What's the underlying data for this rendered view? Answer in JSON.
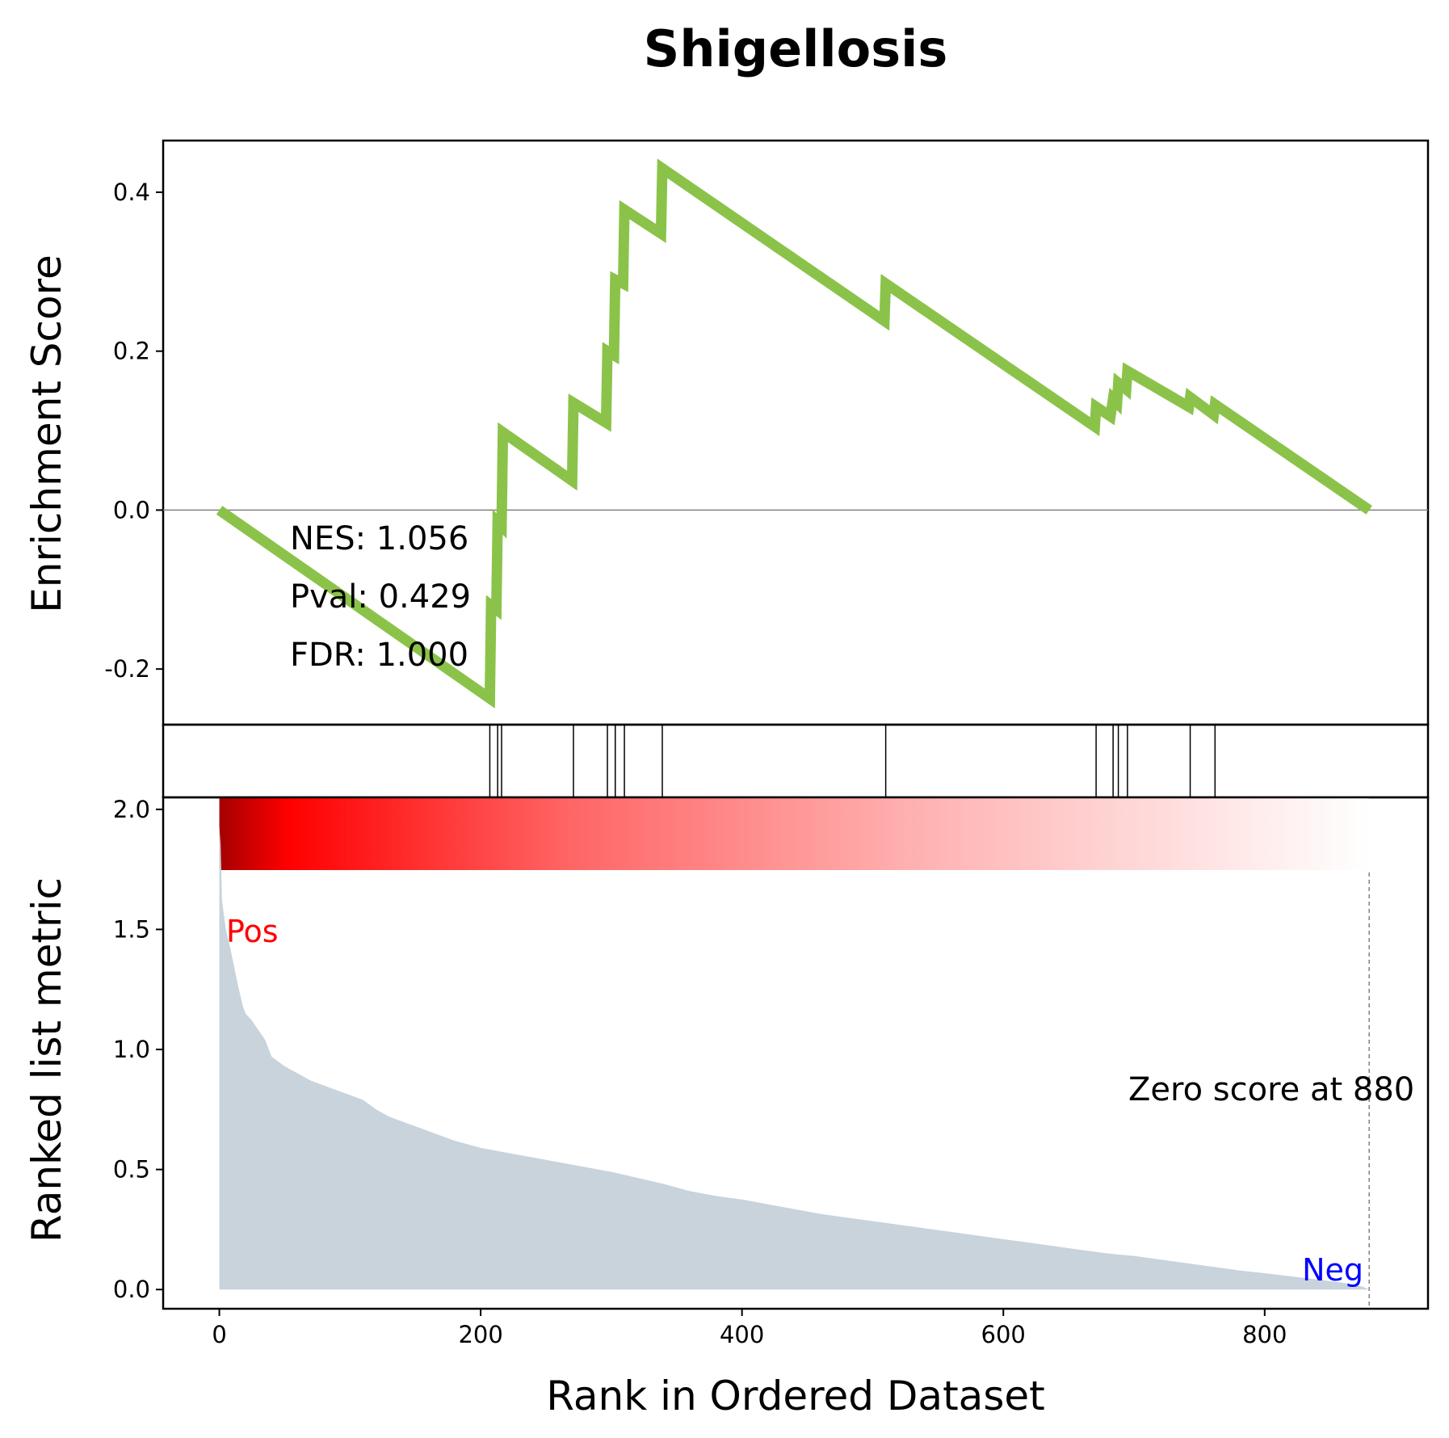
{
  "chart_data": {
    "type": "line",
    "title": "Shigellosis",
    "xlabel": "Rank in Ordered Dataset",
    "es_panel": {
      "ylabel": "Enrichment Score",
      "yticks": [
        -0.2,
        0.0,
        0.2,
        0.4
      ],
      "ytick_labels": [
        "-0.2",
        "0.0",
        "0.2",
        "0.4"
      ],
      "ylim": [
        -0.27,
        0.465
      ],
      "line_color": "#8bc34a",
      "x": [
        0,
        207,
        208,
        212,
        213,
        216,
        217,
        270,
        271,
        296,
        297,
        302,
        303,
        309,
        310,
        338,
        339,
        509,
        510,
        670,
        671,
        682,
        684,
        687,
        688,
        694,
        695,
        742,
        743,
        761,
        762,
        880
      ],
      "y": [
        0.0,
        -0.237,
        -0.12,
        -0.125,
        -0.015,
        -0.02,
        0.098,
        0.037,
        0.135,
        0.11,
        0.2,
        0.195,
        0.29,
        0.285,
        0.378,
        0.348,
        0.43,
        0.238,
        0.285,
        0.105,
        0.13,
        0.118,
        0.14,
        0.135,
        0.16,
        0.152,
        0.175,
        0.13,
        0.142,
        0.12,
        0.133,
        0.0
      ],
      "annotations": [
        {
          "label": "NES: 1.056"
        },
        {
          "label": "Pval: 0.429"
        },
        {
          "label": "FDR: 1.000"
        }
      ]
    },
    "hits": [
      207,
      213,
      216,
      271,
      297,
      303,
      310,
      339,
      510,
      671,
      684,
      688,
      695,
      743,
      762
    ],
    "rank_panel": {
      "ylabel": "Ranked list metric",
      "yticks": [
        0.0,
        0.5,
        1.0,
        1.5,
        2.0
      ],
      "ytick_labels": [
        "0.0",
        "0.5",
        "1.0",
        "1.5",
        "2.0"
      ],
      "ylim": [
        -0.08,
        2.05
      ],
      "fill_color": "#c8d3dc",
      "x": [
        0,
        1,
        2,
        5,
        8,
        10,
        13,
        15,
        18,
        20,
        25,
        30,
        35,
        40,
        45,
        50,
        60,
        70,
        80,
        90,
        100,
        110,
        120,
        130,
        140,
        150,
        160,
        170,
        180,
        190,
        200,
        220,
        240,
        260,
        280,
        300,
        320,
        340,
        360,
        380,
        400,
        420,
        440,
        460,
        480,
        500,
        520,
        540,
        560,
        580,
        600,
        620,
        640,
        660,
        680,
        700,
        720,
        740,
        760,
        780,
        800,
        820,
        840,
        860,
        875,
        880
      ],
      "values": [
        1.93,
        1.85,
        1.62,
        1.5,
        1.43,
        1.38,
        1.3,
        1.25,
        1.18,
        1.15,
        1.12,
        1.08,
        1.04,
        0.97,
        0.95,
        0.93,
        0.9,
        0.87,
        0.85,
        0.83,
        0.81,
        0.79,
        0.75,
        0.72,
        0.7,
        0.68,
        0.66,
        0.64,
        0.62,
        0.605,
        0.59,
        0.57,
        0.55,
        0.53,
        0.51,
        0.49,
        0.465,
        0.44,
        0.41,
        0.39,
        0.375,
        0.355,
        0.335,
        0.315,
        0.3,
        0.285,
        0.27,
        0.255,
        0.24,
        0.225,
        0.21,
        0.195,
        0.18,
        0.165,
        0.15,
        0.14,
        0.125,
        0.11,
        0.095,
        0.08,
        0.068,
        0.055,
        0.042,
        0.028,
        0.012,
        0.0
      ],
      "pos_label": "Pos",
      "neg_label": "Neg",
      "zero_label": "Zero score at 880",
      "zero_score_at": 880
    },
    "xlim": [
      -43,
      925
    ],
    "xticks": [
      0,
      200,
      400,
      600,
      800
    ],
    "xtick_labels": [
      "0",
      "200",
      "400",
      "600",
      "800"
    ],
    "colorbar": {
      "colors": [
        "#a50000",
        "#ff0000",
        "#ffffff"
      ]
    }
  }
}
